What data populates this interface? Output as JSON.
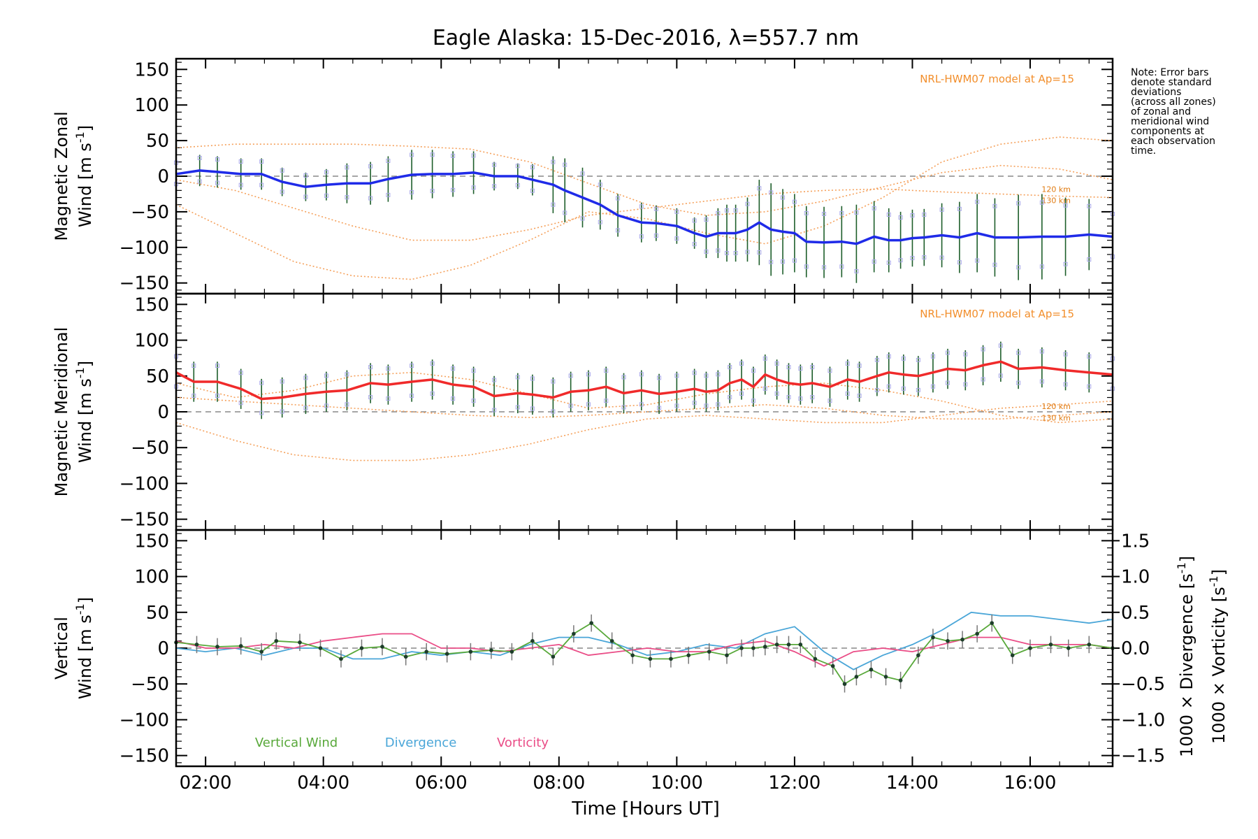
{
  "chart_data": {
    "title": "Eagle Alaska: 15-Dec-2016, λ=557.7 nm",
    "type": "line",
    "x_range": [
      1.5,
      17.4
    ],
    "x_ticks": [
      "02:00",
      "04:00",
      "06:00",
      "08:00",
      "10:00",
      "12:00",
      "14:00",
      "16:00"
    ],
    "xlabel": "Time [Hours UT]",
    "note": [
      "Note: Error bars",
      "denote standard",
      "deviations",
      "(across all zones)",
      "of zonal and",
      "meridional wind",
      "components at",
      "each observation",
      "time."
    ],
    "y_ticks": [
      "150",
      "100",
      "50",
      "0",
      "−50",
      "−100",
      "−150"
    ],
    "panels": [
      {
        "name": "zonal",
        "ylabel_line1": "Magnetic Zonal",
        "ylabel_line2": "Wind [m s",
        "ylabel_sup": "-1",
        "ylabel_close": "]",
        "ylim": [
          -165,
          165
        ],
        "model_label": "NRL-HWM07 model at Ap=15",
        "model_alt_labels": [
          "120 km",
          "130 km"
        ],
        "color": "#1f2be8",
        "series": {
          "x": [
            1.5,
            1.9,
            2.2,
            2.6,
            2.95,
            3.3,
            3.7,
            4.05,
            4.4,
            4.8,
            5.1,
            5.5,
            5.85,
            6.2,
            6.55,
            6.9,
            7.3,
            7.55,
            7.9,
            8.1,
            8.4,
            8.7,
            9.0,
            9.4,
            9.65,
            10.0,
            10.3,
            10.5,
            10.7,
            10.85,
            11.0,
            11.2,
            11.4,
            11.6,
            11.8,
            12.0,
            12.2,
            12.5,
            12.8,
            13.05,
            13.35,
            13.6,
            13.8,
            14.0,
            14.2,
            14.5,
            14.8,
            15.1,
            15.4,
            15.8,
            16.2,
            16.6,
            17.0,
            17.4
          ],
          "y": [
            3,
            8,
            6,
            3,
            3,
            -8,
            -15,
            -12,
            -10,
            -10,
            -4,
            2,
            3,
            3,
            5,
            0,
            0,
            -5,
            -12,
            -20,
            -30,
            -40,
            -55,
            -65,
            -66,
            -70,
            -80,
            -85,
            -80,
            -80,
            -80,
            -75,
            -65,
            -75,
            -78,
            -80,
            -92,
            -93,
            -92,
            -95,
            -85,
            -90,
            -90,
            -87,
            -86,
            -83,
            -86,
            -80,
            -86,
            -86,
            -85,
            -85,
            -82,
            -85
          ],
          "err": [
            20,
            22,
            22,
            22,
            22,
            20,
            20,
            22,
            28,
            30,
            32,
            35,
            34,
            32,
            30,
            20,
            18,
            22,
            40,
            45,
            42,
            35,
            30,
            28,
            25,
            25,
            22,
            30,
            35,
            40,
            40,
            45,
            60,
            65,
            60,
            55,
            50,
            50,
            50,
            55,
            50,
            45,
            40,
            40,
            40,
            45,
            50,
            55,
            55,
            60,
            60,
            55,
            50,
            40
          ]
        },
        "models": [
          {
            "x": [
              1.5,
              2.5,
              3.5,
              4.5,
              5.5,
              6.5,
              7.5,
              8.5,
              9.5,
              10.5,
              11.5,
              12.5,
              13.5,
              14.5,
              15.5,
              16.5,
              17.4
            ],
            "y": [
              40,
              45,
              45,
              45,
              42,
              38,
              20,
              -10,
              -40,
              -55,
              -50,
              -35,
              -15,
              5,
              15,
              10,
              -5
            ]
          },
          {
            "x": [
              1.5,
              2.5,
              3.5,
              4.5,
              5.5,
              6.5,
              7.5,
              8.5,
              9.5,
              10.5,
              11.5,
              12.5,
              13.5,
              14.5,
              15.5,
              16.5,
              17.4
            ],
            "y": [
              -5,
              -20,
              -45,
              -70,
              -90,
              -90,
              -75,
              -55,
              -45,
              -35,
              -25,
              -20,
              -18,
              -22,
              -25,
              -28,
              -30
            ]
          },
          {
            "x": [
              1.5,
              2.5,
              3.5,
              4.5,
              5.5,
              6.5,
              7.5,
              8.5,
              9.5,
              10.5,
              11.5,
              12.5,
              13.5,
              14.5,
              15.5,
              16.5,
              17.4
            ],
            "y": [
              -40,
              -80,
              -120,
              -140,
              -145,
              -125,
              -90,
              -50,
              -60,
              -80,
              -95,
              -70,
              -30,
              20,
              45,
              55,
              50
            ]
          }
        ]
      },
      {
        "name": "meridional",
        "ylabel_line1": "Magnetic Meridional",
        "ylabel_line2": "Wind [m s",
        "ylabel_sup": "-1",
        "ylabel_close": "]",
        "ylim": [
          -165,
          165
        ],
        "model_label": "NRL-HWM07 model at Ap=15",
        "model_alt_labels": [
          "120 km",
          "130 km"
        ],
        "color": "#f02a2a",
        "series": {
          "x": [
            1.5,
            1.8,
            2.2,
            2.6,
            2.95,
            3.3,
            3.7,
            4.05,
            4.4,
            4.8,
            5.1,
            5.5,
            5.85,
            6.2,
            6.55,
            6.9,
            7.3,
            7.55,
            7.9,
            8.2,
            8.5,
            8.8,
            9.1,
            9.4,
            9.7,
            10.0,
            10.3,
            10.5,
            10.7,
            10.9,
            11.1,
            11.3,
            11.5,
            11.7,
            11.9,
            12.1,
            12.3,
            12.6,
            12.9,
            13.1,
            13.4,
            13.6,
            13.85,
            14.1,
            14.35,
            14.6,
            14.9,
            15.2,
            15.5,
            15.8,
            16.2,
            16.6,
            17.0,
            17.4
          ],
          "y": [
            55,
            42,
            42,
            32,
            18,
            20,
            25,
            28,
            30,
            40,
            38,
            42,
            45,
            38,
            35,
            22,
            26,
            24,
            20,
            28,
            30,
            35,
            26,
            30,
            25,
            28,
            32,
            28,
            30,
            40,
            45,
            35,
            52,
            45,
            40,
            38,
            40,
            35,
            45,
            42,
            50,
            55,
            52,
            50,
            55,
            60,
            58,
            65,
            70,
            60,
            62,
            58,
            55,
            52
          ]
        },
        "models": [
          {
            "x": [
              1.5,
              2.5,
              3.5,
              4.5,
              5.5,
              6.5,
              7.5,
              8.5,
              9.5,
              10.5,
              11.5,
              12.5,
              13.5,
              14.5,
              15.5,
              16.5,
              17.4
            ],
            "y": [
              40,
              20,
              30,
              50,
              55,
              45,
              25,
              5,
              10,
              25,
              35,
              40,
              30,
              15,
              -5,
              -15,
              -10
            ]
          },
          {
            "x": [
              1.5,
              2.5,
              3.5,
              4.5,
              5.5,
              6.5,
              7.5,
              8.5,
              9.5,
              10.5,
              11.5,
              12.5,
              13.5,
              14.5,
              15.5,
              16.5,
              17.4
            ],
            "y": [
              20,
              15,
              10,
              5,
              0,
              -5,
              -8,
              -5,
              0,
              5,
              10,
              5,
              -5,
              -10,
              -10,
              -5,
              0
            ]
          },
          {
            "x": [
              1.5,
              2.5,
              3.5,
              4.5,
              5.5,
              6.5,
              7.5,
              8.5,
              9.5,
              10.5,
              11.5,
              12.5,
              13.5,
              14.5,
              15.5,
              16.5,
              17.4
            ],
            "y": [
              -15,
              -40,
              -60,
              -68,
              -68,
              -60,
              -45,
              -25,
              -10,
              -5,
              -10,
              -15,
              -15,
              -5,
              5,
              10,
              15
            ]
          }
        ]
      },
      {
        "name": "vertical",
        "ylabel_line1": "Vertical",
        "ylabel_line2": "Wind [m s",
        "ylabel_sup": "-1",
        "ylabel_close": "]",
        "ylim": [
          -165,
          165
        ],
        "right_ticks": [
          "1.5",
          "1.0",
          "0.5",
          "0.0",
          "−0.5",
          "−1.0",
          "−1.5"
        ],
        "right_ylim": [
          -1.65,
          1.65
        ],
        "right_label1": "1000 × Divergence [s",
        "right_label2": "1000 × Vorticity [s",
        "right_sup": "-1",
        "right_close": "]",
        "legend": [
          "Vertical Wind",
          "Divergence",
          "Vorticity"
        ],
        "colors": {
          "vertical": "#58a83a",
          "divergence": "#4aa6d8",
          "vorticity": "#ea4d87"
        },
        "vertical": {
          "x": [
            1.5,
            1.85,
            2.2,
            2.6,
            2.95,
            3.2,
            3.6,
            3.95,
            4.3,
            4.65,
            5.0,
            5.4,
            5.75,
            6.1,
            6.5,
            6.85,
            7.2,
            7.55,
            7.9,
            8.25,
            8.55,
            8.9,
            9.25,
            9.55,
            9.9,
            10.2,
            10.55,
            10.85,
            11.1,
            11.3,
            11.5,
            11.7,
            11.9,
            12.1,
            12.35,
            12.65,
            12.85,
            13.05,
            13.3,
            13.55,
            13.8,
            14.1,
            14.35,
            14.6,
            14.85,
            15.1,
            15.35,
            15.7,
            16.0,
            16.35,
            16.65,
            17.0,
            17.4
          ],
          "y": [
            8,
            5,
            2,
            3,
            -5,
            10,
            8,
            0,
            -15,
            0,
            2,
            -12,
            -5,
            -8,
            -5,
            -3,
            -5,
            10,
            -12,
            20,
            35,
            10,
            -10,
            -15,
            -15,
            -10,
            -5,
            -10,
            0,
            0,
            2,
            5,
            5,
            5,
            -15,
            -25,
            -50,
            -40,
            -30,
            -40,
            -45,
            -10,
            15,
            10,
            12,
            20,
            35,
            -10,
            0,
            5,
            0,
            5,
            0
          ]
        },
        "divergence": {
          "x": [
            1.5,
            2.0,
            2.5,
            3.0,
            3.5,
            4.0,
            4.5,
            5.0,
            5.5,
            6.0,
            6.5,
            7.0,
            7.5,
            8.0,
            8.5,
            9.0,
            9.5,
            10.0,
            10.5,
            11.0,
            11.5,
            12.0,
            12.5,
            13.0,
            13.5,
            14.0,
            14.5,
            15.0,
            15.5,
            16.0,
            16.5,
            17.0,
            17.4
          ],
          "y": [
            0.0,
            -0.05,
            0.0,
            -0.1,
            0.0,
            0.0,
            -0.15,
            -0.15,
            -0.05,
            -0.1,
            -0.05,
            -0.1,
            0.05,
            0.15,
            0.15,
            0.05,
            -0.1,
            -0.05,
            0.05,
            0.0,
            0.2,
            0.3,
            -0.05,
            -0.3,
            -0.1,
            0.05,
            0.25,
            0.5,
            0.45,
            0.45,
            0.4,
            0.35,
            0.4
          ]
        },
        "vorticity": {
          "x": [
            1.5,
            2.0,
            2.5,
            3.0,
            3.5,
            4.0,
            4.5,
            5.0,
            5.5,
            6.0,
            6.5,
            7.0,
            7.5,
            8.0,
            8.5,
            9.0,
            9.5,
            10.0,
            10.5,
            11.0,
            11.5,
            12.0,
            12.5,
            13.0,
            13.5,
            14.0,
            14.5,
            15.0,
            15.5,
            16.0,
            16.5,
            17.0,
            17.4
          ],
          "y": [
            0.1,
            0.0,
            0.0,
            0.05,
            0.0,
            0.1,
            0.15,
            0.2,
            0.2,
            0.0,
            0.0,
            -0.05,
            0.0,
            0.05,
            -0.1,
            -0.05,
            0.0,
            -0.05,
            -0.05,
            0.05,
            0.1,
            -0.05,
            -0.25,
            -0.05,
            0.0,
            -0.05,
            0.05,
            0.15,
            0.15,
            0.05,
            0.05,
            0.05,
            0.0
          ]
        }
      }
    ]
  }
}
